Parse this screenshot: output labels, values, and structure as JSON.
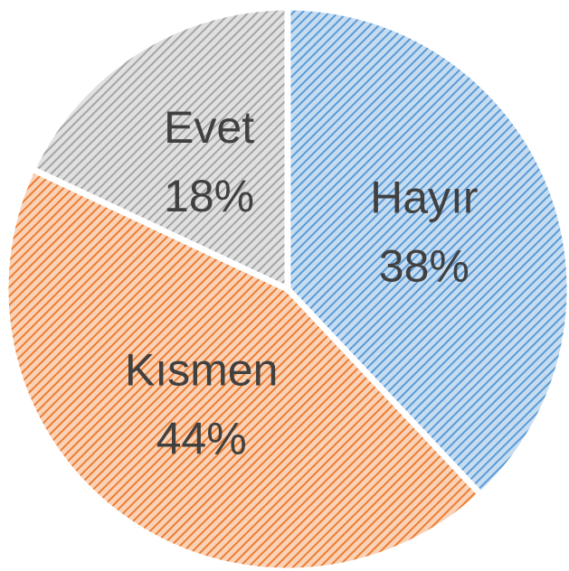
{
  "chart_data": {
    "type": "pie",
    "categories": [
      "Hayır",
      "Kısmen",
      "Evet"
    ],
    "values": [
      38,
      44,
      18
    ],
    "value_labels": [
      "38%",
      "44%",
      "18%"
    ],
    "colors": [
      "#5b9bd5",
      "#ed7d31",
      "#a5a5a5"
    ]
  }
}
